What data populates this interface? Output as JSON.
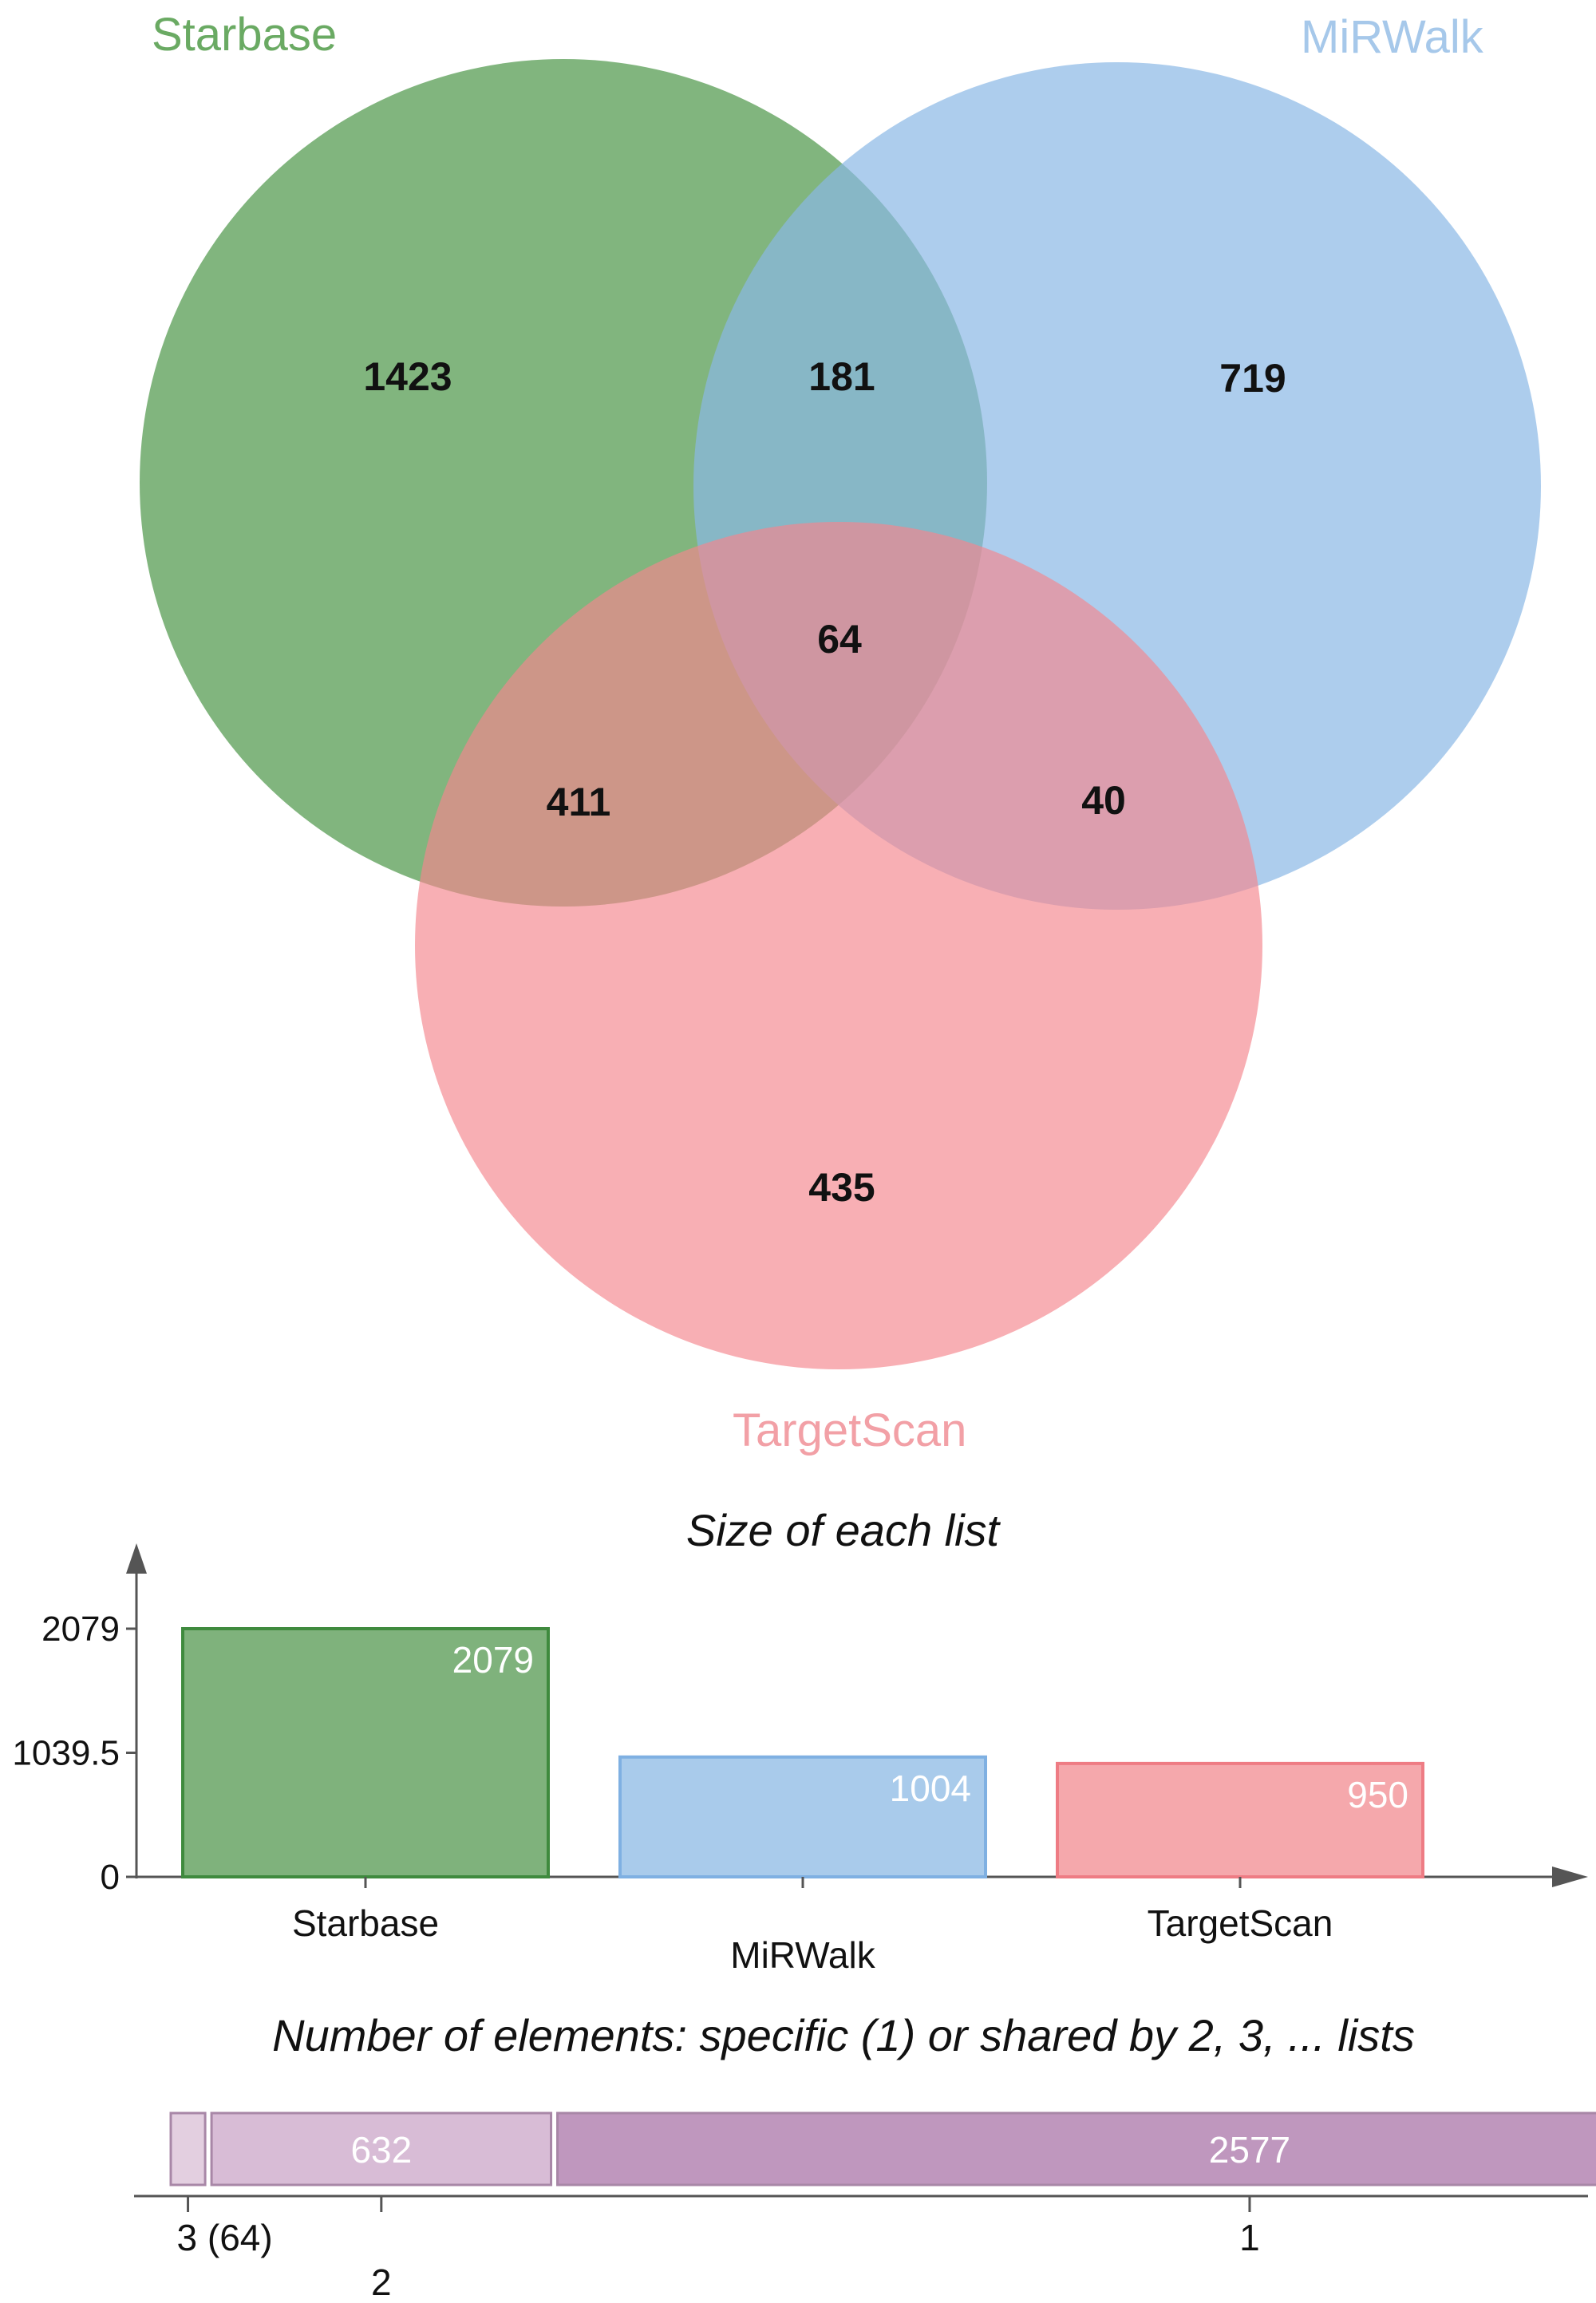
{
  "venn": {
    "sets": [
      {
        "name": "Starbase",
        "color": "#5a9e55",
        "label_color": "#6aaa63"
      },
      {
        "name": "MiRWalk",
        "color": "#8ab8e6",
        "label_color": "#a6c8ea"
      },
      {
        "name": "TargetScan",
        "color": "#f4868d",
        "label_color": "#f2a0a6"
      }
    ],
    "regions": {
      "starbase_only": "1423",
      "starbase_mirwalk": "181",
      "mirwalk_only": "719",
      "all_three": "64",
      "starbase_targetscan": "411",
      "mirwalk_targetscan": "40",
      "targetscan_only": "435"
    }
  },
  "chart_data": [
    {
      "type": "bar",
      "title": "Size of each list",
      "categories": [
        "Starbase",
        "MiRWalk",
        "TargetScan"
      ],
      "values": [
        2079,
        1004,
        950
      ],
      "value_labels": [
        "2079",
        "1004",
        "950"
      ],
      "colors": [
        "#7fb27c",
        "#a9cbeb",
        "#f5a8ac"
      ],
      "edge_colors": [
        "#3f8a3e",
        "#7fb0e2",
        "#ee7c84"
      ],
      "yticks": [
        "2079",
        "1039.5",
        "0"
      ],
      "ytick_values": [
        2079,
        1039.5,
        0
      ],
      "ylim": [
        0,
        2079
      ]
    },
    {
      "type": "bar",
      "orientation": "horizontal-stacked",
      "title": "Number of elements: specific (1) or shared by 2, 3, ... lists",
      "segments": [
        {
          "shared_by": 3,
          "value": 64,
          "label": "",
          "axis_label": "3 (64)",
          "color": "#e3cfe0"
        },
        {
          "shared_by": 2,
          "value": 632,
          "label": "632",
          "axis_label": "2",
          "color": "#d8bcd6"
        },
        {
          "shared_by": 1,
          "value": 2577,
          "label": "2577",
          "axis_label": "1",
          "color": "#bf97be"
        }
      ]
    }
  ]
}
